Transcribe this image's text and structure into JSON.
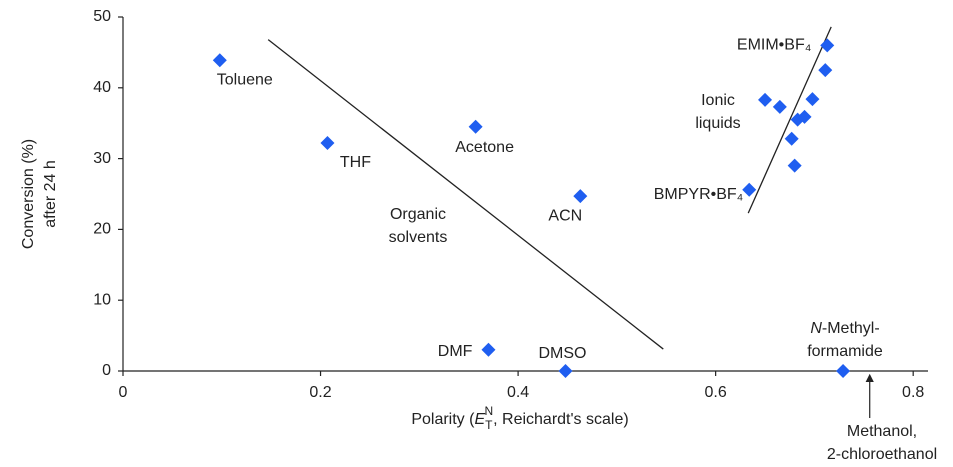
{
  "chart_data": {
    "type": "scatter",
    "x_label": {
      "before": "Polarity (",
      "symbol": "E",
      "sub": "T",
      "sup": "N",
      "after": ", Reichardt's scale)"
    },
    "y_label": [
      "Conversion (%)",
      "after 24 h"
    ],
    "xlim": [
      0,
      0.815
    ],
    "ylim": [
      0,
      50
    ],
    "xticks": [
      0,
      0.2,
      0.4,
      0.6,
      0.8
    ],
    "yticks": [
      0,
      10,
      20,
      30,
      40,
      50
    ],
    "series": [
      {
        "color": "#1f5ef0",
        "x": [
          0.098,
          0.207,
          0.357,
          0.463,
          0.37,
          0.448,
          0.729,
          0.713,
          0.711,
          0.65,
          0.665,
          0.698,
          0.683,
          0.69,
          0.677,
          0.68,
          0.634
        ],
        "values": [
          43.9,
          32.2,
          34.5,
          24.7,
          3.0,
          0,
          0,
          46.0,
          42.5,
          38.3,
          37.3,
          38.4,
          35.5,
          35.9,
          32.8,
          29.0,
          25.6
        ],
        "labels": [
          "Toluene",
          "THF",
          "Acetone",
          "ACN",
          "DMF",
          "DMSO",
          null,
          "EMIM•BF₄",
          null,
          null,
          null,
          null,
          null,
          null,
          null,
          null,
          "BMPYR•BF₄"
        ]
      }
    ],
    "trend_lines": [
      {
        "x": [
          0.147,
          0.547
        ],
        "y": [
          46.8,
          3.1
        ]
      },
      {
        "x": [
          0.633,
          0.717
        ],
        "y": [
          22.3,
          48.6
        ]
      }
    ],
    "annotations": [
      {
        "lines": [
          "Organic",
          "solvents"
        ]
      },
      {
        "lines": [
          "Ionic",
          "liquids"
        ]
      },
      {
        "lines": [
          "N-Methyl-",
          "formamide"
        ]
      },
      {
        "lines": [
          "Methanol,",
          "2-chloroethanol"
        ],
        "x": 0.756
      }
    ]
  }
}
